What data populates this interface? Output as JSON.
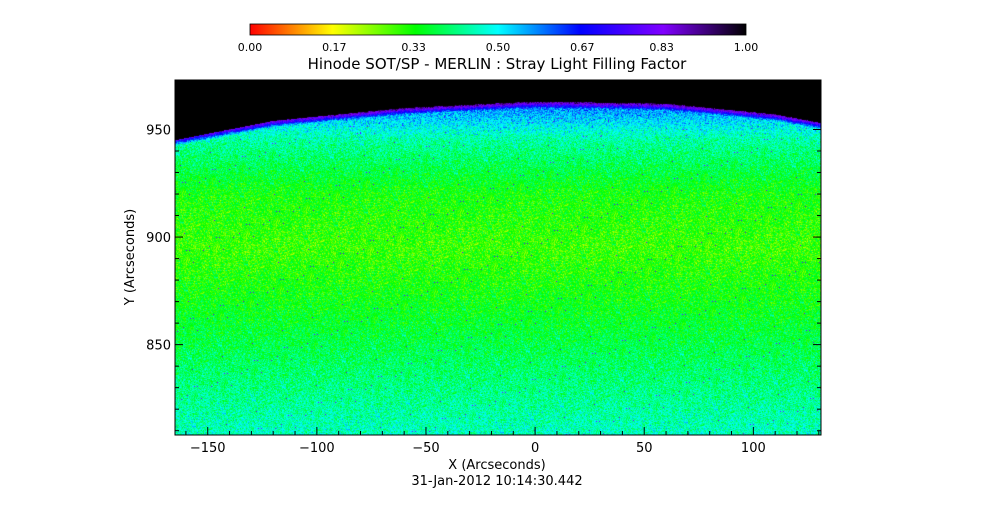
{
  "chart_data": {
    "type": "heatmap",
    "title": "Hinode SOT/SP - MERLIN : Stray Light Filling Factor",
    "xlabel": "X (Arcseconds)",
    "ylabel": "Y (Arcseconds)",
    "timestamp": "31-Jan-2012 10:14:30.442",
    "xlim": [
      -165,
      131
    ],
    "ylim": [
      808,
      973
    ],
    "x_ticks": [
      -150,
      -100,
      -50,
      0,
      50,
      100
    ],
    "y_ticks": [
      850,
      900,
      950
    ],
    "x_tick_labels": [
      "−150",
      "−100",
      "−50",
      "0",
      "50",
      "100"
    ],
    "y_tick_labels": [
      "850",
      "900",
      "950"
    ],
    "colorbar": {
      "min": 0.0,
      "max": 1.0,
      "ticks": [
        0.0,
        0.17,
        0.33,
        0.5,
        0.67,
        0.83,
        1.0
      ],
      "tick_labels": [
        "0.00",
        "0.17",
        "0.33",
        "0.50",
        "0.67",
        "0.83",
        "1.00"
      ],
      "colors": [
        "#ff0000",
        "#ffff00",
        "#00ff00",
        "#00ffff",
        "#0000ff",
        "#8000ff",
        "#000000"
      ]
    },
    "limb_y": [
      [
        -165,
        945
      ],
      [
        -120,
        954
      ],
      [
        -60,
        960
      ],
      [
        0,
        963
      ],
      [
        60,
        962
      ],
      [
        110,
        957
      ],
      [
        131,
        953
      ]
    ],
    "field": {
      "mean_by_y": [
        [
          808,
          0.46
        ],
        [
          840,
          0.4
        ],
        [
          870,
          0.34
        ],
        [
          895,
          0.3
        ],
        [
          920,
          0.33
        ],
        [
          945,
          0.44
        ],
        [
          960,
          0.58
        ]
      ],
      "noise": 0.09,
      "off_limb_value": 1.0
    }
  }
}
